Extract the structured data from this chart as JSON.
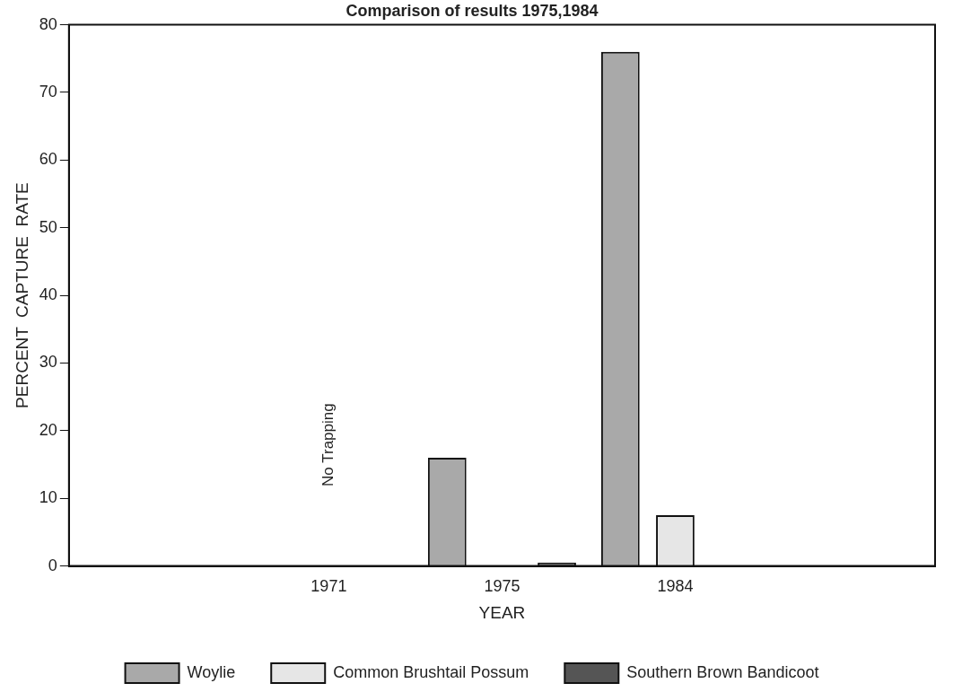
{
  "chart_data": {
    "type": "bar",
    "title": "Comparison of results 1975,1984",
    "xlabel": "YEAR",
    "ylabel": "PERCENT  CAPTURE  RATE",
    "categories": [
      null,
      "1971",
      "1975",
      "1984",
      null
    ],
    "series": [
      {
        "name": "Woylie",
        "color": "#a9a9a9",
        "values": [
          null,
          null,
          16,
          76,
          null
        ]
      },
      {
        "name": "Common Brushtail Possum",
        "color": "#e6e6e6",
        "values": [
          null,
          null,
          null,
          7.5,
          null
        ]
      },
      {
        "name": "Southern Brown Bandicoot",
        "color": "#555555",
        "values": [
          null,
          null,
          0.5,
          null,
          null
        ]
      }
    ],
    "ylim": [
      0,
      80
    ],
    "yticks": [
      0,
      10,
      20,
      30,
      40,
      50,
      60,
      70,
      80
    ],
    "grid": false,
    "legend": "bottom",
    "annotations": [
      "No Trapping"
    ]
  }
}
